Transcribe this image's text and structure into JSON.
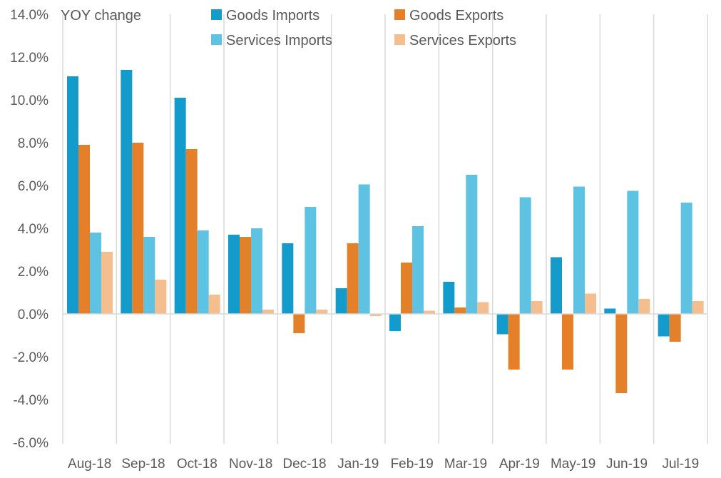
{
  "chart_data": {
    "type": "bar",
    "ylabel": "YOY change",
    "ylim": [
      -6,
      14
    ],
    "ytick_step": 2,
    "ytick_labels": [
      "-6.0%",
      "-4.0%",
      "-2.0%",
      "0.0%",
      "2.0%",
      "4.0%",
      "6.0%",
      "8.0%",
      "10.0%",
      "12.0%",
      "14.0%"
    ],
    "categories": [
      "Aug-18",
      "Sep-18",
      "Oct-18",
      "Nov-18",
      "Dec-18",
      "Jan-19",
      "Feb-19",
      "Mar-19",
      "Apr-19",
      "May-19",
      "Jun-19",
      "Jul-19"
    ],
    "grid": "vertical separators between categories",
    "legend_position": "top",
    "series": [
      {
        "name": "Goods Imports",
        "color": "#139CCB",
        "values": [
          11.1,
          11.4,
          10.1,
          3.7,
          3.3,
          1.2,
          -0.8,
          1.5,
          -0.95,
          2.65,
          0.25,
          -1.05
        ]
      },
      {
        "name": "Goods Exports",
        "color": "#E5802A",
        "values": [
          7.9,
          8.0,
          7.7,
          3.6,
          -0.9,
          3.3,
          2.4,
          0.3,
          -2.6,
          -2.6,
          -3.7,
          -1.3
        ]
      },
      {
        "name": "Services Imports",
        "color": "#5EC2E2",
        "values": [
          3.8,
          3.6,
          3.9,
          4.0,
          5.0,
          6.05,
          4.1,
          6.5,
          5.45,
          5.95,
          5.75,
          5.2
        ]
      },
      {
        "name": "Services Exports",
        "color": "#F5BE8F",
        "values": [
          2.9,
          1.6,
          0.9,
          0.2,
          0.2,
          -0.1,
          0.15,
          0.55,
          0.6,
          0.95,
          0.7,
          0.6
        ]
      }
    ]
  }
}
